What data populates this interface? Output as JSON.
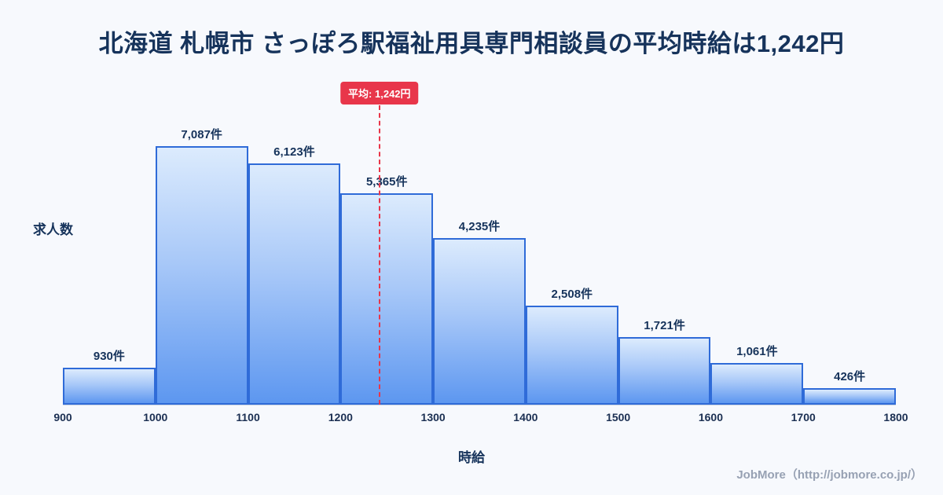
{
  "page": {
    "title": "北海道 札幌市 さっぽろ駅福祉用具専門相談員の平均時給は1,242円",
    "footer": "JobMore（http://jobmore.co.jp/）"
  },
  "chart_data": {
    "type": "bar",
    "subtype": "histogram",
    "title": "北海道 札幌市 さっぽろ駅福祉用具専門相談員の平均時給は1,242円",
    "xlabel": "時給",
    "ylabel": "求人数",
    "x_range": [
      900,
      1800
    ],
    "x_ticks": [
      "900",
      "1000",
      "1100",
      "1200",
      "1300",
      "1400",
      "1500",
      "1600",
      "1700",
      "1800"
    ],
    "bins": [
      "900-1000",
      "1000-1100",
      "1100-1200",
      "1200-1300",
      "1300-1400",
      "1400-1500",
      "1500-1600",
      "1600-1700",
      "1700-1800"
    ],
    "values": [
      930,
      7087,
      6123,
      5365,
      4235,
      2508,
      1721,
      1061,
      426
    ],
    "value_labels": [
      "930件",
      "7,087件",
      "6,123件",
      "5,365件",
      "4,235件",
      "2,508件",
      "1,721件",
      "1,061件",
      "426件"
    ],
    "average": 1242,
    "average_label": "平均: 1,242円",
    "legend": "none",
    "grid": "off",
    "colors": {
      "background": "#f7f9fd",
      "bar_gradient_top": "#dcebfd",
      "bar_gradient_bottom": "#5d97f0",
      "bar_border": "#2f6bd8",
      "average_line": "#e8364a",
      "title_text": "#16335b",
      "footer_text": "#97a1b3"
    }
  }
}
